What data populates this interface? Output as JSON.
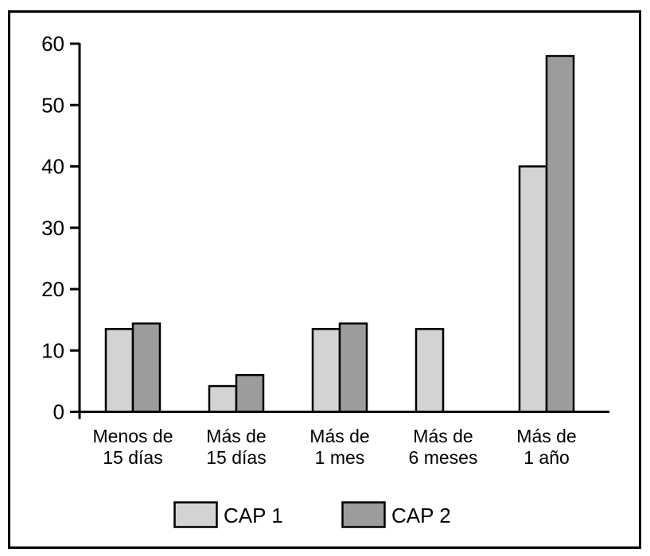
{
  "figure": {
    "background": "#ffffff",
    "border_color": "#000000"
  },
  "chart_data": {
    "type": "bar",
    "title": "",
    "xlabel": "",
    "ylabel": "",
    "categories": [
      "Menos de\n15 días",
      "Más de\n15 días",
      "Más de\n1 mes",
      "Más de\n6 meses",
      "Más de\n1 año"
    ],
    "series": [
      {
        "name": "CAP 1",
        "color": "#d3d3d3",
        "values": [
          13.5,
          4.2,
          13.5,
          13.5,
          40
        ]
      },
      {
        "name": "CAP 2",
        "color": "#9c9c9c",
        "values": [
          14.4,
          6,
          14.4,
          0,
          58
        ]
      }
    ],
    "ylim": [
      0,
      60
    ],
    "yticks": [
      0,
      10,
      20,
      30,
      40,
      50,
      60
    ],
    "grid": false,
    "legend_position": "bottom-inside",
    "bar_outline_color": "#000000",
    "axis_color": "#000000"
  }
}
